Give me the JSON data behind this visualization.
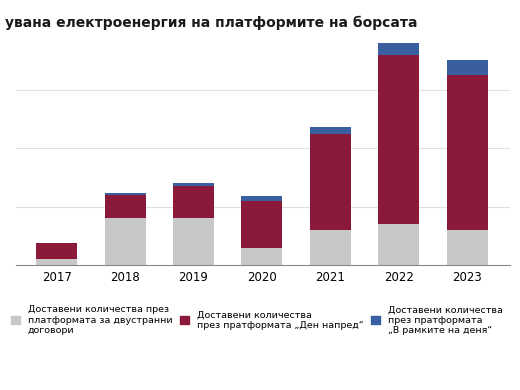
{
  "title": "увана електроенергия на платформите на борсата",
  "years": [
    "2017",
    "2018",
    "2019",
    "2020",
    "2021",
    "2022",
    "2023"
  ],
  "bilateral": [
    1.0,
    8.0,
    8.0,
    3.0,
    6.0,
    7.0,
    6.0
  ],
  "day_ahead": [
    2.8,
    4.0,
    5.5,
    8.0,
    16.5,
    29.0,
    26.5
  ],
  "intraday": [
    0.0,
    0.4,
    0.6,
    0.8,
    1.2,
    2.2,
    2.5
  ],
  "color_bilateral": "#c8c8c8",
  "color_day_ahead": "#8b1a3a",
  "color_intraday": "#3a5fa0",
  "legend_bilateral": "Доставени количества през\nплатформата за двустранни\nдоговори",
  "legend_day_ahead": "Доставени количества\nпрез пратформата „Ден напред“",
  "legend_intraday": "Доставени количества\nпрез пратформата\n„В рамките на деня“",
  "background_color": "#ffffff",
  "ylim": [
    0,
    38
  ],
  "bar_width": 0.6,
  "grid_color": "#e0e0e0",
  "title_fontsize": 10,
  "tick_fontsize": 8.5,
  "legend_fontsize": 6.8
}
